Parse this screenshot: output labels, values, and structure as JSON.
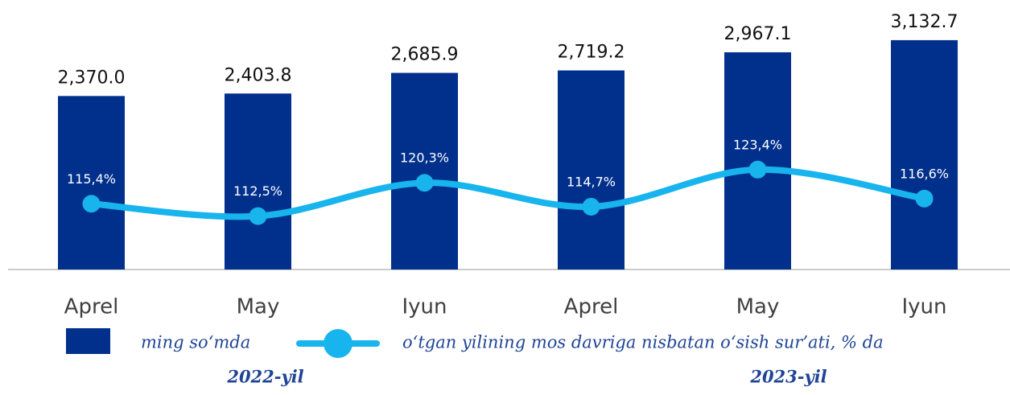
{
  "chart_data": {
    "type": "bar",
    "categories": [
      "Aprel",
      "May",
      "Iyun",
      "Aprel",
      "May",
      "Iyun"
    ],
    "group_labels": [
      "2022-yil",
      "2023-yil"
    ],
    "series": [
      {
        "name": "ming so‘mda",
        "type": "bar",
        "color": "#01308c",
        "values": [
          2370.0,
          2403.8,
          2685.9,
          2719.2,
          2967.1,
          3132.7
        ],
        "value_labels": [
          "2,370.0",
          "2,403.8",
          "2,685.9",
          "2,719.2",
          "2,967.1",
          "3,132.7"
        ]
      },
      {
        "name": "o‘tgan yilining mos davriga nisbatan o‘sish sur’ati, % da",
        "type": "line",
        "axis": "y2",
        "color": "#17b4ee",
        "values": [
          115.4,
          112.5,
          120.3,
          114.7,
          123.4,
          116.6
        ],
        "value_labels": [
          "115,4%",
          "112,5%",
          "120,3%",
          "114,7%",
          "123,4%",
          "116,6%"
        ]
      }
    ],
    "ylim": [
      0,
      3500
    ],
    "y2lim": [
      100,
      160
    ],
    "grid": false
  }
}
